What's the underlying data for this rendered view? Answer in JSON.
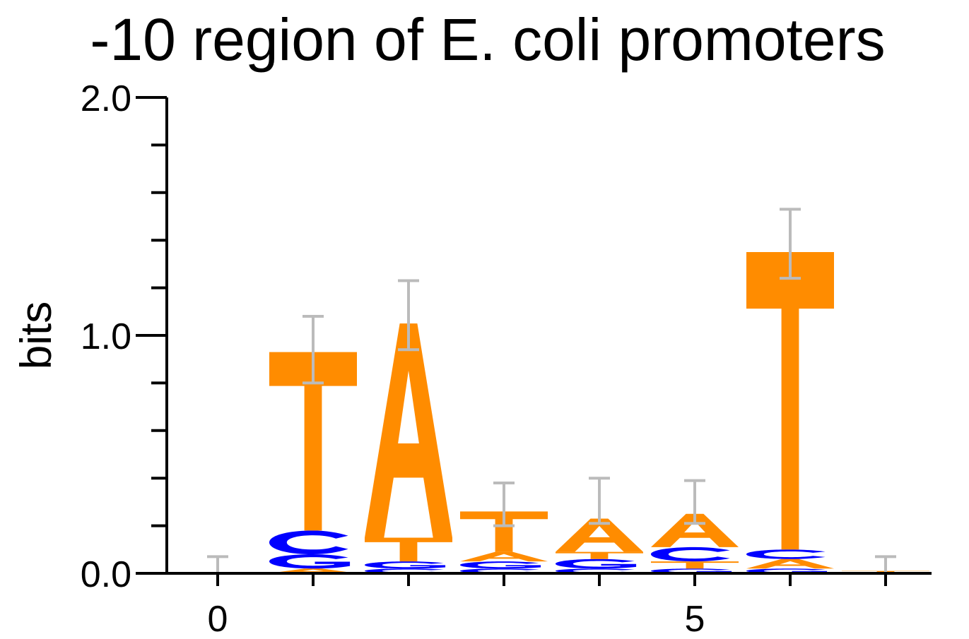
{
  "chart_data": {
    "type": "sequence-logo",
    "title": "-10 region of E. coli promoters",
    "xlabel": "",
    "ylabel": "bits",
    "ylim": [
      0,
      2.0
    ],
    "xlim": [
      -0.5,
      7.5
    ],
    "y_ticks": [
      0.0,
      1.0,
      2.0
    ],
    "y_tick_labels": [
      "0.0",
      "1.0",
      "2.0"
    ],
    "y_minor_step": 0.2,
    "x_ticks": [
      0,
      1,
      2,
      3,
      4,
      5,
      6,
      7
    ],
    "x_tick_labels": [
      "0",
      "",
      "",
      "",
      "",
      "5",
      "",
      ""
    ],
    "colors": {
      "A": "#ff8c00",
      "T": "#ff8c00",
      "G": "#0000ff",
      "C": "#0000ff",
      "error": "#bbbbbb"
    },
    "positions": [
      {
        "x": 0,
        "letters": [],
        "error": [
          0.0,
          0.07
        ]
      },
      {
        "x": 1,
        "letters": [
          {
            "base": "A",
            "bits": 0.02
          },
          {
            "base": "G",
            "bits": 0.06
          },
          {
            "base": "C",
            "bits": 0.1
          },
          {
            "base": "T",
            "bits": 0.75
          }
        ],
        "error": [
          0.8,
          1.08
        ]
      },
      {
        "x": 2,
        "letters": [
          {
            "base": "C",
            "bits": 0.02
          },
          {
            "base": "G",
            "bits": 0.03
          },
          {
            "base": "T",
            "bits": 0.1
          },
          {
            "base": "A",
            "bits": 0.9
          }
        ],
        "error": [
          0.94,
          1.23
        ]
      },
      {
        "x": 3,
        "letters": [
          {
            "base": "C",
            "bits": 0.02
          },
          {
            "base": "G",
            "bits": 0.03
          },
          {
            "base": "A",
            "bits": 0.04
          },
          {
            "base": "T",
            "bits": 0.17
          }
        ],
        "error": [
          0.2,
          0.38
        ]
      },
      {
        "x": 4,
        "letters": [
          {
            "base": "C",
            "bits": 0.02
          },
          {
            "base": "G",
            "bits": 0.04
          },
          {
            "base": "T",
            "bits": 0.03
          },
          {
            "base": "A",
            "bits": 0.14
          }
        ],
        "error": [
          0.21,
          0.4
        ]
      },
      {
        "x": 5,
        "letters": [
          {
            "base": "G",
            "bits": 0.02
          },
          {
            "base": "T",
            "bits": 0.03
          },
          {
            "base": "C",
            "bits": 0.06
          },
          {
            "base": "A",
            "bits": 0.14
          }
        ],
        "error": [
          0.21,
          0.39
        ]
      },
      {
        "x": 6,
        "letters": [
          {
            "base": "G",
            "bits": 0.02
          },
          {
            "base": "A",
            "bits": 0.04
          },
          {
            "base": "C",
            "bits": 0.04
          },
          {
            "base": "T",
            "bits": 1.25
          }
        ],
        "error": [
          1.24,
          1.53
        ]
      },
      {
        "x": 7,
        "letters": [
          {
            "base": "G",
            "bits": 0.005
          },
          {
            "base": "T",
            "bits": 0.005
          }
        ],
        "error": [
          0.0,
          0.07
        ]
      }
    ]
  }
}
